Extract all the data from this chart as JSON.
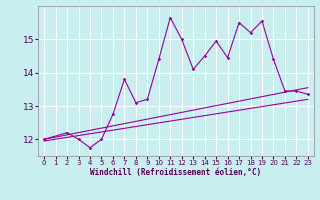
{
  "xlabel": "Windchill (Refroidissement éolien,°C)",
  "bg_color": "#c8eef0",
  "grid_color": "#ffffff",
  "line_color": "#990099",
  "xlim": [
    -0.5,
    23.5
  ],
  "ylim": [
    11.5,
    16.0
  ],
  "xticks": [
    0,
    1,
    2,
    3,
    4,
    5,
    6,
    7,
    8,
    9,
    10,
    11,
    12,
    13,
    14,
    15,
    16,
    17,
    18,
    19,
    20,
    21,
    22,
    23
  ],
  "yticks": [
    12,
    13,
    14,
    15
  ],
  "data_line": [
    [
      0,
      12.0
    ],
    [
      2,
      12.2
    ],
    [
      3,
      12.0
    ],
    [
      4,
      11.75
    ],
    [
      5,
      12.0
    ],
    [
      6,
      12.75
    ],
    [
      7,
      13.8
    ],
    [
      8,
      13.1
    ],
    [
      9,
      13.2
    ],
    [
      10,
      14.4
    ],
    [
      11,
      15.65
    ],
    [
      12,
      15.0
    ],
    [
      13,
      14.1
    ],
    [
      14,
      14.5
    ],
    [
      15,
      14.95
    ],
    [
      16,
      14.45
    ],
    [
      17,
      15.5
    ],
    [
      18,
      15.2
    ],
    [
      19,
      15.55
    ],
    [
      20,
      14.4
    ],
    [
      21,
      13.45
    ],
    [
      22,
      13.45
    ],
    [
      23,
      13.35
    ]
  ],
  "trend_line1": [
    [
      0,
      12.0
    ],
    [
      23,
      13.55
    ]
  ],
  "trend_line2": [
    [
      0,
      11.95
    ],
    [
      23,
      13.2
    ]
  ]
}
